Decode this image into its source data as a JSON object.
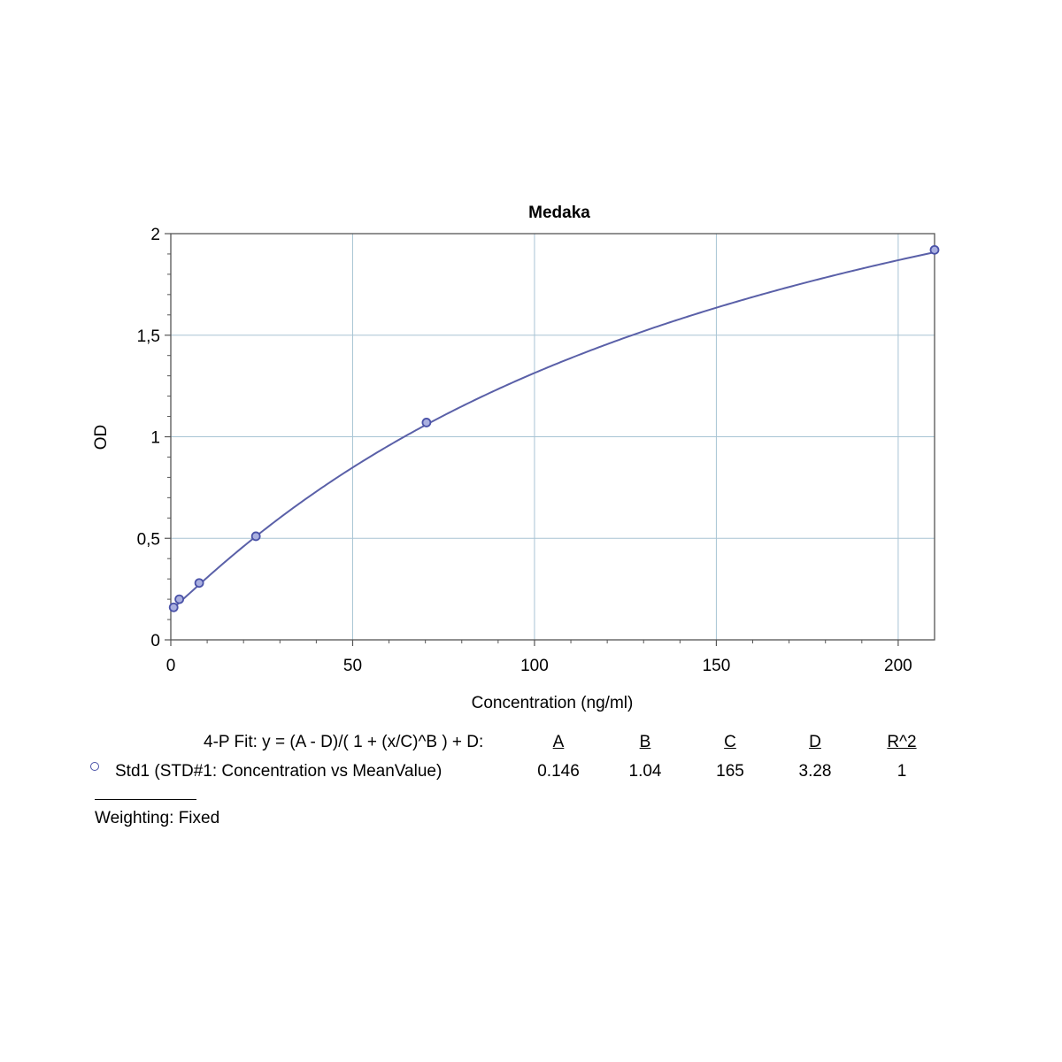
{
  "chart_data": {
    "type": "line",
    "title": "Medaka",
    "xlabel": "Concentration (ng/ml)",
    "ylabel": "OD",
    "xlim": [
      0,
      210
    ],
    "ylim": [
      0,
      2
    ],
    "x_ticks": [
      0,
      50,
      100,
      150,
      200
    ],
    "x_tick_labels": [
      "0",
      "50",
      "100",
      "150",
      "200"
    ],
    "y_ticks": [
      0,
      0.5,
      1,
      1.5,
      2
    ],
    "y_tick_labels": [
      "0",
      "0,5",
      "1",
      "1,5",
      "2"
    ],
    "grid": true,
    "fit": {
      "model": "4-PL",
      "A": 0.146,
      "B": 1.04,
      "C": 165,
      "D": 3.28
    },
    "series": [
      {
        "x": [
          0.78,
          2.34,
          7.81,
          23.4,
          70.3,
          210
        ],
        "y": [
          0.16,
          0.2,
          0.28,
          0.51,
          1.07,
          1.92
        ]
      }
    ],
    "colors": {
      "curve": "#5a60a8",
      "marker": "#4a52a8",
      "grid": "#a8c4d4"
    }
  },
  "fit_table": {
    "equation_label": "4-P Fit: y = (A - D)/( 1 + (x/C)^B ) + D:",
    "headers": [
      "A",
      "B",
      "C",
      "D",
      "R^2"
    ],
    "row": {
      "name": "Std1 (STD#1: Concentration vs MeanValue)",
      "values": [
        "0.146",
        "1.04",
        "165",
        "3.28",
        "1"
      ]
    }
  },
  "weighting": "Weighting: Fixed"
}
